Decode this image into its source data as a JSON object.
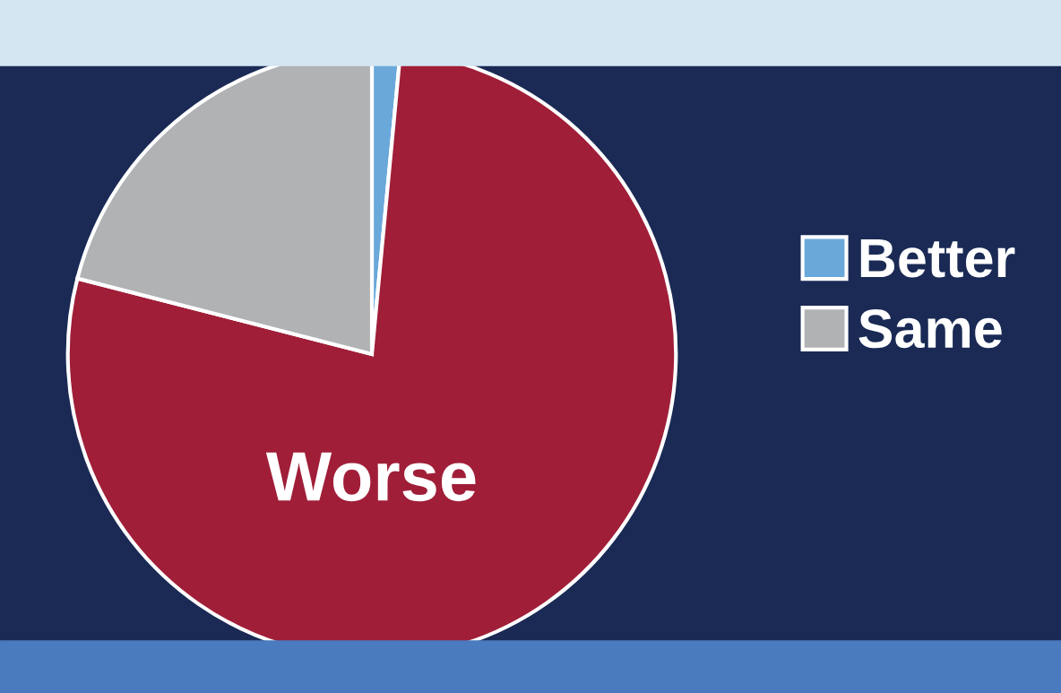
{
  "chart_data": {
    "type": "pie",
    "categories": [
      "Better",
      "Worse",
      "Same"
    ],
    "values": [
      1.5,
      77.5,
      21
    ],
    "colors": [
      "#6aa8da",
      "#a01e38",
      "#b0b2b3"
    ],
    "legend": "right"
  }
}
